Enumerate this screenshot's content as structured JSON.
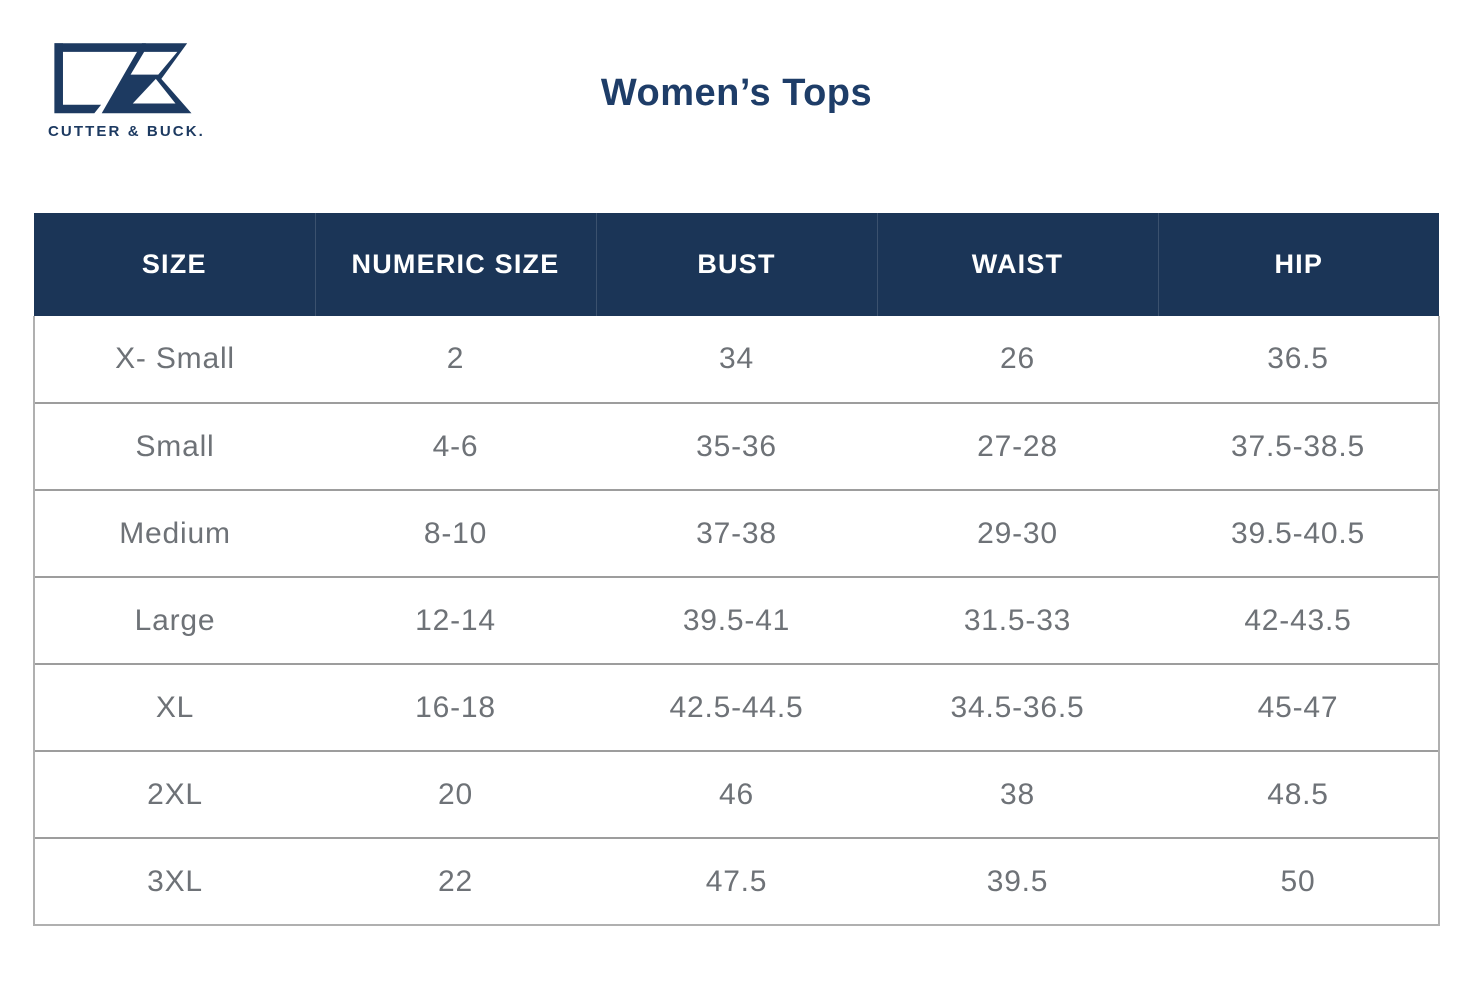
{
  "brand": {
    "name": "Cutter & Buck",
    "wordmark": "CUTTER & BUCK.",
    "logo_icon": "cutter-buck-cb-monogram",
    "logo_color": "#1d3a61"
  },
  "page": {
    "title": "Women’s Tops"
  },
  "colors": {
    "header_bg": "#1b3557",
    "header_text": "#ffffff",
    "title_text": "#1e3d68",
    "cell_text": "#6e7277",
    "row_border": "#9d9d9d",
    "outer_border": "#b0b0b0",
    "page_bg": "#ffffff"
  },
  "chart_data": {
    "type": "table",
    "title": "Women’s Tops",
    "columns": [
      "SIZE",
      "NUMERIC SIZE",
      "BUST",
      "WAIST",
      "HIP"
    ],
    "rows": [
      [
        "X- Small",
        "2",
        "34",
        "26",
        "36.5"
      ],
      [
        "Small",
        "4-6",
        "35-36",
        "27-28",
        "37.5-38.5"
      ],
      [
        "Medium",
        "8-10",
        "37-38",
        "29-30",
        "39.5-40.5"
      ],
      [
        "Large",
        "12-14",
        "39.5-41",
        "31.5-33",
        "42-43.5"
      ],
      [
        "XL",
        "16-18",
        "42.5-44.5",
        "34.5-36.5",
        "45-47"
      ],
      [
        "2XL",
        "20",
        "46",
        "38",
        "48.5"
      ],
      [
        "3XL",
        "22",
        "47.5",
        "39.5",
        "50"
      ]
    ],
    "layout_hints": {
      "header_style": "dark navy band, white uppercase labels",
      "grid": "horizontal row separators only",
      "column_count": 5,
      "columns_equal_width": true
    }
  }
}
